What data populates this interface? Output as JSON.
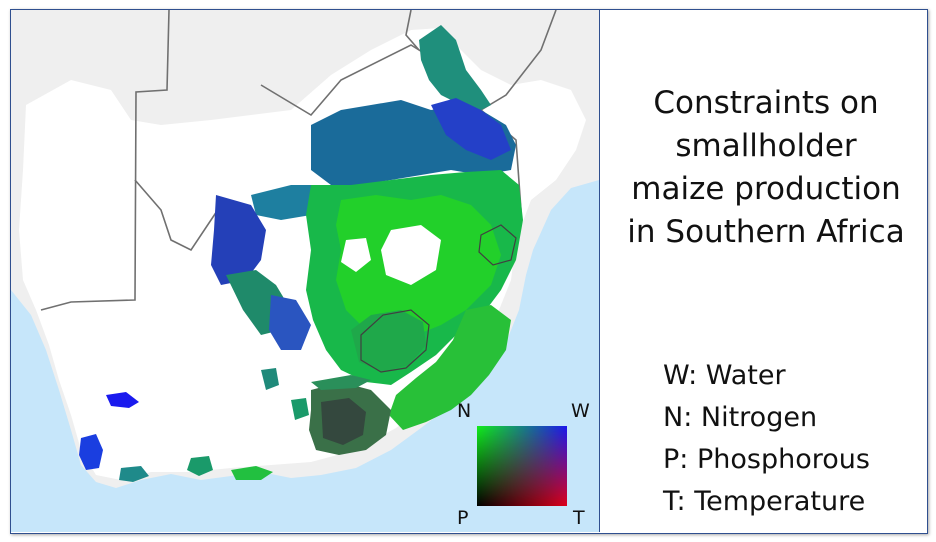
{
  "title_lines": [
    "Constraints on",
    "smallholder",
    "maize production",
    "in Southern Africa"
  ],
  "legend": {
    "items": [
      "W: Water",
      "N: Nitrogen",
      "P: Phosphorous",
      "T: Temperature"
    ],
    "corners": {
      "top_left": "N",
      "top_right": "W",
      "bottom_left": "P",
      "bottom_right": "T"
    }
  },
  "colors": {
    "water": "#1a16ee",
    "nitrogen": "#12ee1a",
    "phosphorous": "#000000",
    "temperature": "#e0001a",
    "ocean": "#c6e6fa",
    "land": "#efefef",
    "study_area": "#ffffff",
    "border": "#707070"
  }
}
